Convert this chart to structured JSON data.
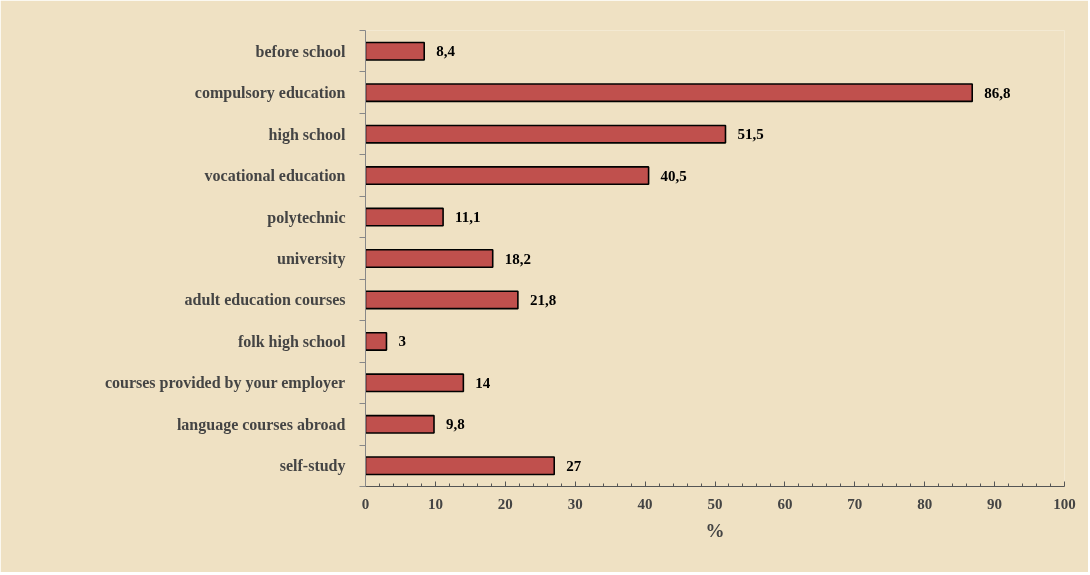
{
  "chart_data": {
    "type": "bar",
    "orientation": "horizontal",
    "categories": [
      "before school",
      "compulsory education",
      "high school",
      "vocational education",
      "polytechnic",
      "university",
      "adult education courses",
      "folk high school",
      "courses provided by your employer",
      "language courses abroad",
      "self-study"
    ],
    "values": [
      8.4,
      86.8,
      51.5,
      40.5,
      11.1,
      18.2,
      21.8,
      3,
      14,
      9.8,
      27
    ],
    "value_labels": [
      "8,4",
      "86,8",
      "51,5",
      "40,5",
      "11,1",
      "18,2",
      "21,8",
      "3",
      "14",
      "9,8",
      "27"
    ],
    "color": "#c0504d",
    "xlim": [
      0,
      100
    ],
    "xticks": [
      0,
      10,
      20,
      30,
      40,
      50,
      60,
      70,
      80,
      90,
      100
    ],
    "xlabel": "%"
  }
}
